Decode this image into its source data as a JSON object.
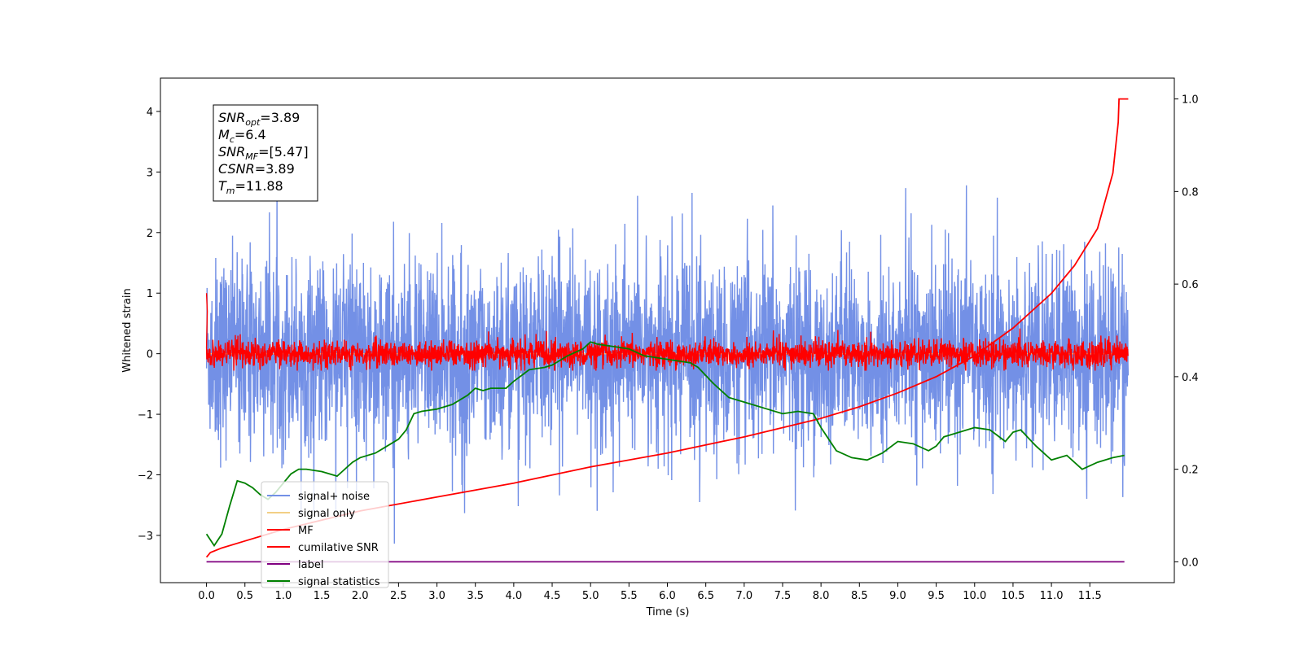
{
  "chart_data": {
    "type": "line",
    "xlabel": "Time (s)",
    "ylabel": "Whitened strain",
    "xlim": [
      -0.6,
      12.6
    ],
    "ylim": [
      -3.78,
      4.55
    ],
    "y2lim": [
      -0.045,
      1.045
    ],
    "x_ticks": [
      "0.0",
      "0.5",
      "1.0",
      "1.5",
      "2.0",
      "2.5",
      "3.0",
      "3.5",
      "4.0",
      "4.5",
      "5.0",
      "5.5",
      "6.0",
      "6.5",
      "7.0",
      "7.5",
      "8.0",
      "8.5",
      "9.0",
      "9.5",
      "10.0",
      "10.5",
      "11.0",
      "11.5"
    ],
    "y_ticks": [
      "4",
      "3",
      "2",
      "1",
      "0",
      "−1",
      "−2",
      "−3"
    ],
    "y2_ticks": [
      "1.0",
      "0.8",
      "0.6",
      "0.4",
      "0.2",
      "0.0"
    ],
    "grid": false,
    "legend_position": "lower-left",
    "annotation": {
      "lines": [
        {
          "sym": "SNR",
          "sub": "opt",
          "value": "=3.89"
        },
        {
          "sym": "M",
          "sub": "c",
          "value": "=6.4"
        },
        {
          "sym": "SNR",
          "sub": "MF",
          "value": "=[5.47]"
        },
        {
          "sym": "CSNR",
          "sub": "",
          "value": "=3.89"
        },
        {
          "sym": "T",
          "sub": "m",
          "value": "=11.88"
        }
      ]
    },
    "series": [
      {
        "name": "signal+ noise",
        "axis": "left",
        "color": "#7390e6",
        "approx": {
          "x_start": 0.0,
          "x_end": 12.0,
          "center": 0.0,
          "typical_spread": 1.6,
          "max": 4.15,
          "min": -3.4
        }
      },
      {
        "name": "signal only",
        "axis": "left",
        "color": "#f2cf85",
        "approx": {
          "x_start": 0.0,
          "x_end": 12.0,
          "value": 0.0
        }
      },
      {
        "name": "MF",
        "axis": "left",
        "color": "#ff0000",
        "approx": {
          "x_start": 0.0,
          "x_end": 12.0,
          "center": 0.0,
          "typical_spread": 0.2,
          "max": 1.0,
          "min": -0.3
        }
      },
      {
        "name": "cumilative SNR",
        "axis": "right",
        "color": "#ff0000",
        "x": [
          0.0,
          0.05,
          0.2,
          0.5,
          1.0,
          2.0,
          3.0,
          4.0,
          5.0,
          6.0,
          7.0,
          7.5,
          8.0,
          8.5,
          9.0,
          9.5,
          10.0,
          10.5,
          11.0,
          11.3,
          11.6,
          11.8,
          11.87,
          11.88,
          12.0
        ],
        "y": [
          0.01,
          0.02,
          0.03,
          0.045,
          0.07,
          0.11,
          0.14,
          0.17,
          0.205,
          0.235,
          0.27,
          0.29,
          0.31,
          0.335,
          0.365,
          0.4,
          0.445,
          0.505,
          0.58,
          0.64,
          0.72,
          0.84,
          0.95,
          1.0,
          1.0
        ]
      },
      {
        "name": "label",
        "axis": "right",
        "color": "#800080",
        "x": [
          0.0,
          11.95
        ],
        "y": [
          0.0,
          0.0
        ]
      },
      {
        "name": "signal statistics",
        "axis": "right",
        "color": "#008000",
        "x": [
          0.0,
          0.1,
          0.2,
          0.3,
          0.4,
          0.5,
          0.6,
          0.7,
          0.8,
          0.9,
          1.0,
          1.1,
          1.2,
          1.3,
          1.5,
          1.7,
          1.8,
          1.9,
          2.0,
          2.2,
          2.3,
          2.5,
          2.6,
          2.7,
          2.8,
          3.0,
          3.2,
          3.4,
          3.5,
          3.6,
          3.7,
          3.9,
          4.0,
          4.2,
          4.4,
          4.5,
          4.7,
          4.9,
          5.0,
          5.1,
          5.3,
          5.5,
          5.7,
          5.9,
          6.1,
          6.3,
          6.4,
          6.6,
          6.8,
          7.0,
          7.3,
          7.5,
          7.7,
          7.9,
          8.0,
          8.2,
          8.4,
          8.6,
          8.8,
          9.0,
          9.2,
          9.4,
          9.5,
          9.6,
          9.8,
          10.0,
          10.2,
          10.4,
          10.5,
          10.6,
          10.8,
          11.0,
          11.2,
          11.4,
          11.6,
          11.8,
          11.95
        ],
        "y": [
          0.06,
          0.035,
          0.06,
          0.12,
          0.175,
          0.17,
          0.16,
          0.145,
          0.135,
          0.15,
          0.17,
          0.19,
          0.2,
          0.2,
          0.195,
          0.185,
          0.2,
          0.215,
          0.225,
          0.235,
          0.245,
          0.265,
          0.285,
          0.32,
          0.325,
          0.33,
          0.34,
          0.36,
          0.375,
          0.37,
          0.375,
          0.375,
          0.39,
          0.415,
          0.42,
          0.425,
          0.445,
          0.46,
          0.475,
          0.47,
          0.465,
          0.46,
          0.445,
          0.44,
          0.435,
          0.43,
          0.42,
          0.385,
          0.355,
          0.345,
          0.33,
          0.32,
          0.325,
          0.32,
          0.29,
          0.24,
          0.225,
          0.22,
          0.235,
          0.26,
          0.255,
          0.24,
          0.25,
          0.27,
          0.28,
          0.29,
          0.285,
          0.26,
          0.28,
          0.285,
          0.25,
          0.22,
          0.23,
          0.2,
          0.215,
          0.225,
          0.23
        ]
      }
    ]
  }
}
